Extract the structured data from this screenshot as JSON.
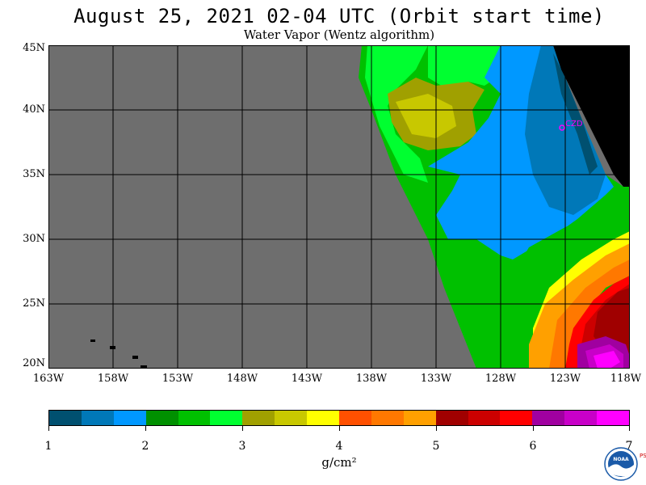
{
  "header": {
    "title": "August 25, 2021  02-04 UTC  (Orbit start time)",
    "subtitle": "Water Vapor (Wentz algorithm)"
  },
  "map": {
    "lat_labels": [
      "45N",
      "40N",
      "35N",
      "30N",
      "25N",
      "20N"
    ],
    "lon_labels": [
      "163W",
      "158W",
      "153W",
      "148W",
      "143W",
      "138W",
      "133W",
      "128W",
      "123W",
      "118W"
    ],
    "station_label": "CZD",
    "no_data_color": "#6e6e6e",
    "land_color": "#000000",
    "station_color": "#ff00ff"
  },
  "colorbar": {
    "colors": [
      "#005070",
      "#0078b8",
      "#0098ff",
      "#009000",
      "#00c000",
      "#00ff30",
      "#a0a000",
      "#c8c800",
      "#ffff00",
      "#ff5000",
      "#ff7800",
      "#ffa000",
      "#a00000",
      "#cc0000",
      "#ff0000",
      "#a000a0",
      "#c800c8",
      "#ff00ff"
    ],
    "tick_labels": [
      "1",
      "2",
      "3",
      "4",
      "5",
      "6",
      "7"
    ],
    "units": "g/cm²"
  },
  "logo": {
    "text": "NOAA",
    "side_text": "PSL"
  }
}
